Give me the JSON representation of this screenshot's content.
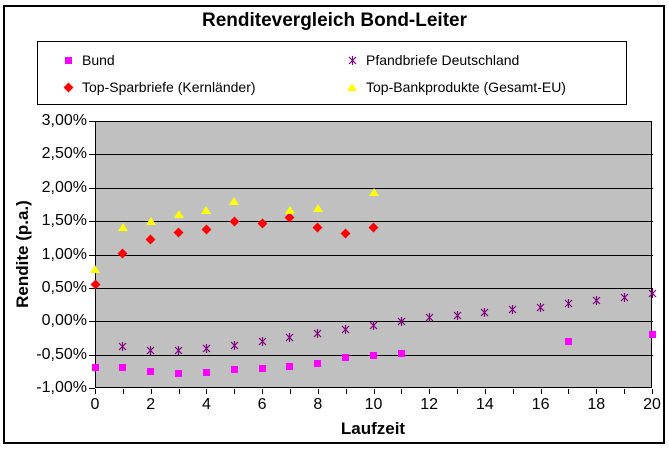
{
  "chart_data": {
    "type": "scatter",
    "title": "Renditevergleich Bond-Leiter",
    "xlabel": "Laufzeit",
    "ylabel": "Rendite (p.a.)",
    "xlim": [
      0,
      20
    ],
    "ylim": [
      -1.0,
      3.0
    ],
    "grid": true,
    "plot_bg": "#C0C0C0",
    "legend_position": "top",
    "y_ticks": [
      {
        "label": "3,00%",
        "value": 3.0
      },
      {
        "label": "2,50%",
        "value": 2.5
      },
      {
        "label": "2,00%",
        "value": 2.0
      },
      {
        "label": "1,50%",
        "value": 1.5
      },
      {
        "label": "1,00%",
        "value": 1.0
      },
      {
        "label": "0,50%",
        "value": 0.5
      },
      {
        "label": "0,00%",
        "value": 0.0
      },
      {
        "label": "-0,50%",
        "value": -0.5
      },
      {
        "label": "-1,00%",
        "value": -1.0
      }
    ],
    "x_major_ticks": [
      {
        "label": "0",
        "value": 0
      },
      {
        "label": "2",
        "value": 2
      },
      {
        "label": "4",
        "value": 4
      },
      {
        "label": "6",
        "value": 6
      },
      {
        "label": "8",
        "value": 8
      },
      {
        "label": "10",
        "value": 10
      },
      {
        "label": "12",
        "value": 12
      },
      {
        "label": "14",
        "value": 14
      },
      {
        "label": "16",
        "value": 16
      },
      {
        "label": "18",
        "value": 18
      },
      {
        "label": "20",
        "value": 20
      }
    ],
    "x_minor_tick_step": 1,
    "series": [
      {
        "name": "Bund",
        "marker": "square",
        "color": "#FF00FF",
        "points": [
          [
            0,
            -0.69
          ],
          [
            1,
            -0.69
          ],
          [
            2,
            -0.76
          ],
          [
            3,
            -0.79
          ],
          [
            4,
            -0.77
          ],
          [
            5,
            -0.73
          ],
          [
            6,
            -0.71
          ],
          [
            7,
            -0.68
          ],
          [
            8,
            -0.63
          ],
          [
            9,
            -0.55
          ],
          [
            10,
            -0.51
          ],
          [
            11,
            -0.49
          ],
          [
            17,
            -0.3
          ],
          [
            20,
            -0.2
          ]
        ]
      },
      {
        "name": "Pfandbriefe Deutschland",
        "marker": "star",
        "color": "#800080",
        "points": [
          [
            1,
            -0.32
          ],
          [
            2,
            -0.38
          ],
          [
            3,
            -0.38
          ],
          [
            4,
            -0.35
          ],
          [
            5,
            -0.31
          ],
          [
            6,
            -0.25
          ],
          [
            7,
            -0.19
          ],
          [
            8,
            -0.12
          ],
          [
            9,
            -0.06
          ],
          [
            10,
            -0.01
          ],
          [
            11,
            0.05
          ],
          [
            12,
            0.12
          ],
          [
            13,
            0.15
          ],
          [
            14,
            0.19
          ],
          [
            15,
            0.24
          ],
          [
            16,
            0.27
          ],
          [
            17,
            0.32
          ],
          [
            18,
            0.37
          ],
          [
            19,
            0.42
          ],
          [
            20,
            0.48
          ]
        ]
      },
      {
        "name": "Top-Sparbriefe (Kernländer)",
        "marker": "diamond",
        "color": "#FF0000",
        "points": [
          [
            0,
            0.55
          ],
          [
            1,
            1.02
          ],
          [
            2,
            1.22
          ],
          [
            3,
            1.33
          ],
          [
            4,
            1.37
          ],
          [
            5,
            1.5
          ],
          [
            6,
            1.47
          ],
          [
            7,
            1.55
          ],
          [
            8,
            1.41
          ],
          [
            9,
            1.31
          ],
          [
            10,
            1.41
          ]
        ]
      },
      {
        "name": "Top-Bankprodukte (Gesamt-EU)",
        "marker": "triangle",
        "color": "#FFFF00",
        "points": [
          [
            0,
            0.78
          ],
          [
            1,
            1.41
          ],
          [
            2,
            1.5
          ],
          [
            3,
            1.6
          ],
          [
            4,
            1.67
          ],
          [
            5,
            1.8
          ],
          [
            7,
            1.66
          ],
          [
            8,
            1.7
          ],
          [
            10,
            1.93
          ]
        ]
      }
    ]
  }
}
